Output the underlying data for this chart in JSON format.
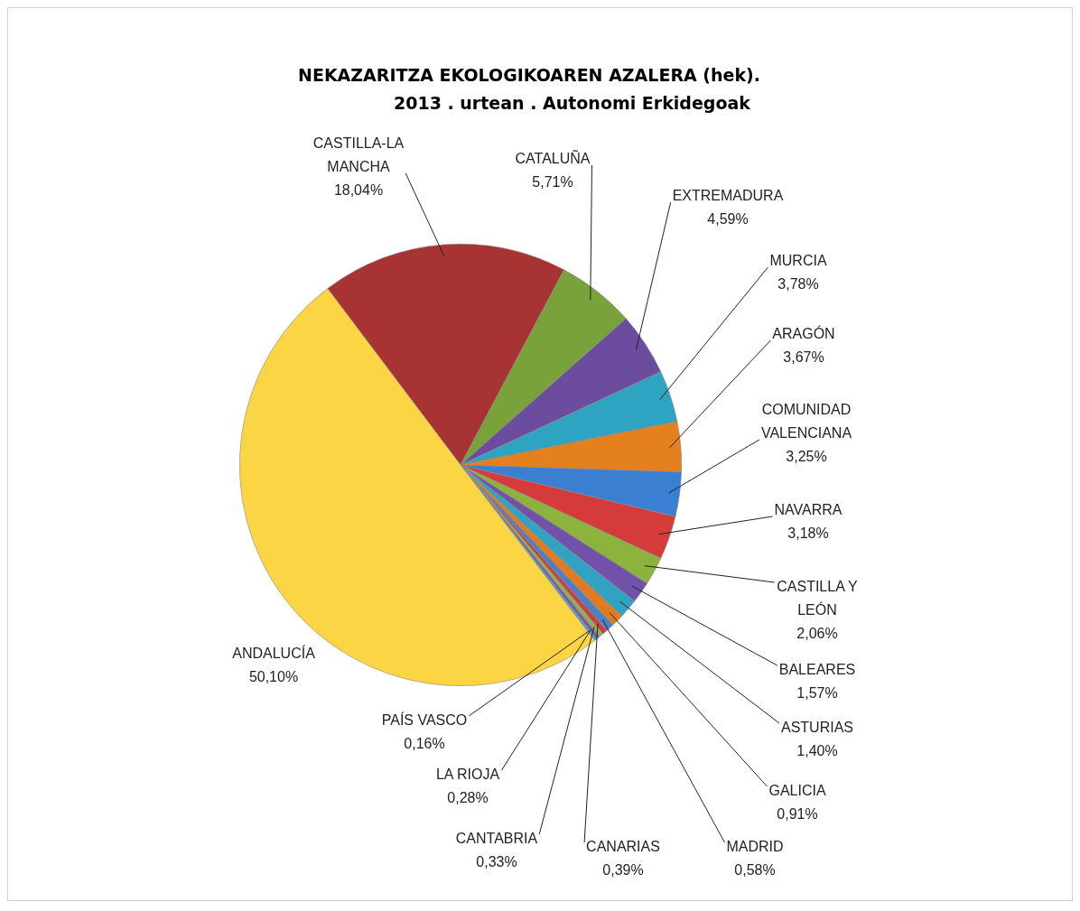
{
  "chart_data": {
    "type": "pie",
    "title": "NEKAZARITZA EKOLOGIKOAREN AZALERA (hek).",
    "subtitle": "2013 . urtean . Autonomi Erkidegoak",
    "categories": [
      "CASTILLA-LA MANCHA",
      "CATALUÑA",
      "EXTREMADURA",
      "MURCIA",
      "ARAGÓN",
      "COMUNIDAD VALENCIANA",
      "NAVARRA",
      "CASTILLA Y LEÓN",
      "BALEARES",
      "ASTURIAS",
      "GALICIA",
      "MADRID",
      "CANARIAS",
      "CANTABRIA",
      "LA RIOJA",
      "PAÍS VASCO",
      "ANDALUCÍA"
    ],
    "values": [
      18.04,
      5.71,
      4.59,
      3.78,
      3.67,
      3.25,
      3.18,
      2.06,
      1.57,
      1.4,
      0.91,
      0.58,
      0.39,
      0.33,
      0.28,
      0.16,
      50.1
    ],
    "value_labels": [
      "18,04%",
      "5,71%",
      "4,59%",
      "3,78%",
      "3,67%",
      "3,25%",
      "3,18%",
      "2,06%",
      "1,57%",
      "1,40%",
      "0,91%",
      "0,58%",
      "0,39%",
      "0,33%",
      "0,28%",
      "0,16%",
      "50,10%"
    ],
    "colors": [
      "#a83333",
      "#7aa23a",
      "#6b4c9e",
      "#2ea3c2",
      "#e5801f",
      "#3b7fd2",
      "#d63b3b",
      "#8cb43c",
      "#7152a8",
      "#32a2c2",
      "#e07b22",
      "#4b80c8",
      "#c84242",
      "#92b052",
      "#7a5aa8",
      "#42a8c8",
      "#fcd545"
    ],
    "legend": false
  }
}
